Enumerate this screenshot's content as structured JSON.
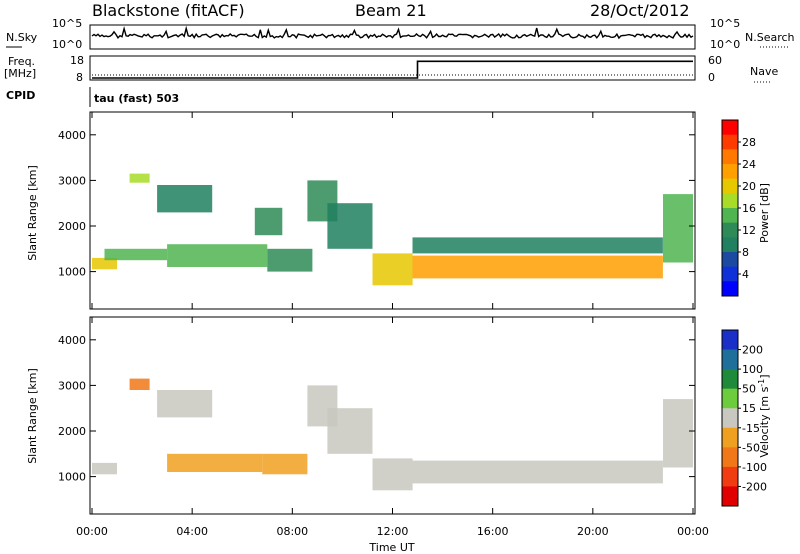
{
  "header": {
    "station": "Blackstone (fitACF)",
    "beam": "Beam 21",
    "date": "28/Oct/2012"
  },
  "left_labels": {
    "nsky": "N.Sky",
    "freq_line1": "Freq.",
    "freq_line2": "[MHz]",
    "cpid": "CPID"
  },
  "right_labels": {
    "nsearch": "N.Search",
    "nave": "Nave"
  },
  "cpid_text": "tau (fast) 503",
  "chart_data": [
    {
      "type": "line",
      "panel": "noise",
      "series": [
        {
          "name": "N.Sky",
          "style": "solid"
        },
        {
          "name": "N.Search",
          "style": "dotted"
        }
      ],
      "ytick_labels": [
        "10^5",
        "10^0"
      ],
      "approx_level_log10": 1.3
    },
    {
      "type": "line",
      "panel": "frequency / nave",
      "left_ticks": [
        "18",
        "8"
      ],
      "right_ticks": [
        "60",
        "0"
      ],
      "series": [
        {
          "name": "Freq. [MHz]",
          "style": "dotted",
          "x_hours": [
            0,
            24
          ],
          "values": [
            10.2,
            10.2
          ]
        },
        {
          "name": "Nave",
          "style": "solid",
          "x_hours": [
            0,
            13.0,
            13.0,
            24
          ],
          "values": [
            0,
            0,
            50,
            50
          ]
        }
      ]
    },
    {
      "type": "heatmap",
      "panel": "power",
      "title": "",
      "xlabel": "Time UT",
      "ylabel": "Slant Range [km]",
      "xlim_hours": [
        0,
        24
      ],
      "ylim_km": [
        180,
        4500
      ],
      "x_tick_labels": [
        "00:00",
        "04:00",
        "08:00",
        "12:00",
        "16:00",
        "20:00",
        "00:00"
      ],
      "y_tick_labels": [
        "1000",
        "2000",
        "3000",
        "4000"
      ],
      "colorbar": {
        "label": "Power [dB]",
        "tick_labels": [
          "28",
          "24",
          "20",
          "16",
          "12",
          "8",
          "4"
        ],
        "colors": [
          "#ff0000",
          "#ff3c00",
          "#ff7800",
          "#ff9f00",
          "#e6c800",
          "#a8dc28",
          "#50b450",
          "#2e8b57",
          "#208060",
          "#1c4aa0",
          "#1030d8",
          "#0000ff"
        ],
        "range": [
          0,
          30
        ]
      },
      "echo_regions": [
        {
          "hours": [
            0.0,
            1.0
          ],
          "km": [
            1050,
            1300
          ],
          "dB": 18
        },
        {
          "hours": [
            0.5,
            3.0
          ],
          "km": [
            1250,
            1500
          ],
          "dB": 14
        },
        {
          "hours": [
            1.5,
            2.3
          ],
          "km": [
            2950,
            3150
          ],
          "dB": 16
        },
        {
          "hours": [
            2.6,
            4.8
          ],
          "km": [
            2300,
            2900
          ],
          "dB": 9
        },
        {
          "hours": [
            3.0,
            7.0
          ],
          "km": [
            1100,
            1600
          ],
          "dB": 14
        },
        {
          "hours": [
            6.5,
            7.6
          ],
          "km": [
            1800,
            2400
          ],
          "dB": 11
        },
        {
          "hours": [
            7.0,
            8.8
          ],
          "km": [
            1000,
            1500
          ],
          "dB": 12
        },
        {
          "hours": [
            8.6,
            9.8
          ],
          "km": [
            2100,
            3000
          ],
          "dB": 10
        },
        {
          "hours": [
            9.4,
            11.2
          ],
          "km": [
            1500,
            2500
          ],
          "dB": 9
        },
        {
          "hours": [
            11.2,
            12.8
          ],
          "km": [
            700,
            1400
          ],
          "dB": 18
        },
        {
          "hours": [
            12.8,
            22.8
          ],
          "km": [
            850,
            1350
          ],
          "dB": 22
        },
        {
          "hours": [
            12.8,
            22.8
          ],
          "km": [
            1400,
            1750
          ],
          "dB": 8
        },
        {
          "hours": [
            22.8,
            24.0
          ],
          "km": [
            1200,
            2700
          ],
          "dB": 14
        }
      ]
    },
    {
      "type": "heatmap",
      "panel": "velocity",
      "title": "",
      "xlabel": "Time UT",
      "ylabel": "Slant Range [km]",
      "xlim_hours": [
        0,
        24
      ],
      "ylim_km": [
        180,
        4500
      ],
      "x_tick_labels": [
        "00:00",
        "04:00",
        "08:00",
        "12:00",
        "16:00",
        "20:00",
        "00:00"
      ],
      "y_tick_labels": [
        "1000",
        "2000",
        "3000",
        "4000"
      ],
      "colorbar": {
        "label": "Velocity [m s",
        "label_superscript": "-1",
        "label_close": "]",
        "tick_labels": [
          "200",
          "100",
          "50",
          "15",
          "-15",
          "-50",
          "-100",
          "-200"
        ],
        "colors": [
          "#1a2fc8",
          "#1e6f9a",
          "#1e8a3a",
          "#6ccc3c",
          "#c8c8c0",
          "#f0a020",
          "#f07818",
          "#f03c10",
          "#e00000"
        ],
        "range": [
          -250,
          250
        ]
      },
      "echo_regions": [
        {
          "hours": [
            0.0,
            1.0
          ],
          "km": [
            1050,
            1300
          ],
          "ms": 0
        },
        {
          "hours": [
            1.5,
            2.3
          ],
          "km": [
            2900,
            3150
          ],
          "ms": -150
        },
        {
          "hours": [
            2.6,
            4.8
          ],
          "km": [
            2300,
            2900
          ],
          "ms": 0
        },
        {
          "hours": [
            3.0,
            6.8
          ],
          "km": [
            1100,
            1500
          ],
          "ms": -40
        },
        {
          "hours": [
            6.8,
            8.6
          ],
          "km": [
            1050,
            1500
          ],
          "ms": -60
        },
        {
          "hours": [
            8.6,
            9.8
          ],
          "km": [
            2100,
            3000
          ],
          "ms": 0
        },
        {
          "hours": [
            9.4,
            11.2
          ],
          "km": [
            1500,
            2500
          ],
          "ms": 0
        },
        {
          "hours": [
            11.2,
            12.8
          ],
          "km": [
            700,
            1400
          ],
          "ms": 20
        },
        {
          "hours": [
            12.8,
            22.8
          ],
          "km": [
            850,
            1350
          ],
          "ms": 0
        },
        {
          "hours": [
            22.8,
            24.0
          ],
          "km": [
            1200,
            2700
          ],
          "ms": 0
        }
      ]
    }
  ]
}
